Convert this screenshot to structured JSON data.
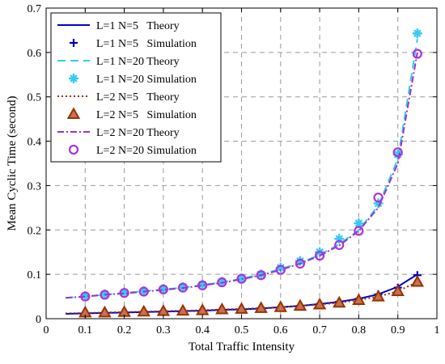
{
  "chart_data": {
    "type": "line",
    "title": "",
    "xlabel": "Total Traffic Intensity",
    "ylabel": "Mean Cyclic Time (second)",
    "xlim": [
      0,
      1
    ],
    "ylim": [
      0,
      0.7
    ],
    "x_ticks": [
      "0",
      "0.1",
      "0.2",
      "0.3",
      "0.4",
      "0.5",
      "0.6",
      "0.7",
      "0.8",
      "0.9",
      "1"
    ],
    "y_ticks": [
      "0",
      "0.1",
      "0.2",
      "0.3",
      "0.4",
      "0.5",
      "0.6",
      "0.7"
    ],
    "grid": true,
    "legend_position": "top-left",
    "series": [
      {
        "name": "L=1 N=5   Theory",
        "kind": "line",
        "color": "#0000CC",
        "dash": "solid",
        "x": [
          0.05,
          0.1,
          0.15,
          0.2,
          0.25,
          0.3,
          0.35,
          0.4,
          0.45,
          0.5,
          0.55,
          0.6,
          0.65,
          0.7,
          0.75,
          0.8,
          0.85,
          0.9,
          0.95
        ],
        "y": [
          0.011,
          0.012,
          0.013,
          0.014,
          0.015,
          0.016,
          0.017,
          0.018,
          0.02,
          0.021,
          0.023,
          0.026,
          0.029,
          0.033,
          0.038,
          0.045,
          0.055,
          0.072,
          0.1
        ]
      },
      {
        "name": "L=1 N=5   Simulation",
        "kind": "marker",
        "marker": "plus",
        "color": "#0000AA",
        "x": [
          0.1,
          0.15,
          0.2,
          0.25,
          0.3,
          0.35,
          0.4,
          0.45,
          0.5,
          0.55,
          0.6,
          0.65,
          0.7,
          0.75,
          0.8,
          0.85,
          0.9,
          0.95
        ],
        "y": [
          0.012,
          0.013,
          0.014,
          0.015,
          0.016,
          0.017,
          0.018,
          0.02,
          0.021,
          0.023,
          0.026,
          0.029,
          0.033,
          0.038,
          0.045,
          0.055,
          0.07,
          0.098
        ]
      },
      {
        "name": "L=1 N=20 Theory",
        "kind": "line",
        "color": "#33CCEE",
        "dash": "10,6",
        "x": [
          0.05,
          0.1,
          0.15,
          0.2,
          0.25,
          0.3,
          0.35,
          0.4,
          0.45,
          0.5,
          0.55,
          0.6,
          0.65,
          0.7,
          0.75,
          0.8,
          0.85,
          0.9,
          0.95
        ],
        "y": [
          0.047,
          0.05,
          0.054,
          0.058,
          0.062,
          0.066,
          0.07,
          0.076,
          0.082,
          0.09,
          0.1,
          0.112,
          0.126,
          0.144,
          0.168,
          0.2,
          0.255,
          0.36,
          0.63
        ]
      },
      {
        "name": "L=1 N=20 Simulation",
        "kind": "marker",
        "marker": "star",
        "color": "#33CCEE",
        "x": [
          0.1,
          0.15,
          0.2,
          0.25,
          0.3,
          0.35,
          0.4,
          0.45,
          0.5,
          0.55,
          0.6,
          0.65,
          0.7,
          0.75,
          0.8,
          0.85,
          0.9,
          0.95
        ],
        "y": [
          0.051,
          0.055,
          0.059,
          0.062,
          0.067,
          0.071,
          0.077,
          0.083,
          0.091,
          0.1,
          0.115,
          0.13,
          0.15,
          0.18,
          0.215,
          0.26,
          0.37,
          0.643
        ]
      },
      {
        "name": "L=2 N=5   Theory",
        "kind": "line",
        "color": "#993300",
        "dash": "2,3",
        "x": [
          0.05,
          0.1,
          0.15,
          0.2,
          0.25,
          0.3,
          0.35,
          0.4,
          0.45,
          0.5,
          0.55,
          0.6,
          0.65,
          0.7,
          0.75,
          0.8,
          0.85,
          0.9,
          0.95
        ],
        "y": [
          0.012,
          0.013,
          0.014,
          0.015,
          0.016,
          0.017,
          0.018,
          0.019,
          0.021,
          0.022,
          0.024,
          0.026,
          0.029,
          0.032,
          0.036,
          0.042,
          0.05,
          0.062,
          0.083
        ]
      },
      {
        "name": "L=2 N=5   Simulation",
        "kind": "marker",
        "marker": "triangle",
        "color": "#993300",
        "fill": "#C87050",
        "x": [
          0.1,
          0.15,
          0.2,
          0.25,
          0.3,
          0.35,
          0.4,
          0.45,
          0.5,
          0.55,
          0.6,
          0.65,
          0.7,
          0.75,
          0.8,
          0.85,
          0.9,
          0.95
        ],
        "y": [
          0.014,
          0.014,
          0.015,
          0.016,
          0.017,
          0.018,
          0.019,
          0.021,
          0.022,
          0.024,
          0.026,
          0.029,
          0.032,
          0.036,
          0.042,
          0.05,
          0.062,
          0.083
        ]
      },
      {
        "name": "L=2 N=20 Theory",
        "kind": "line",
        "color": "#9933CC",
        "dash": "8,3,2,3",
        "x": [
          0.05,
          0.1,
          0.15,
          0.2,
          0.25,
          0.3,
          0.35,
          0.4,
          0.45,
          0.5,
          0.55,
          0.6,
          0.65,
          0.7,
          0.75,
          0.8,
          0.85,
          0.9,
          0.95
        ],
        "y": [
          0.047,
          0.05,
          0.054,
          0.057,
          0.061,
          0.065,
          0.069,
          0.075,
          0.081,
          0.089,
          0.098,
          0.11,
          0.124,
          0.142,
          0.165,
          0.198,
          0.25,
          0.35,
          0.6
        ]
      },
      {
        "name": "L=2 N=20 Simulation",
        "kind": "marker",
        "marker": "circle",
        "color": "#AA33DD",
        "x": [
          0.1,
          0.15,
          0.2,
          0.25,
          0.3,
          0.35,
          0.4,
          0.45,
          0.5,
          0.55,
          0.6,
          0.65,
          0.7,
          0.75,
          0.8,
          0.85,
          0.9,
          0.95
        ],
        "y": [
          0.05,
          0.054,
          0.058,
          0.061,
          0.066,
          0.07,
          0.075,
          0.082,
          0.09,
          0.098,
          0.11,
          0.124,
          0.142,
          0.166,
          0.198,
          0.273,
          0.375,
          0.597
        ]
      }
    ]
  }
}
